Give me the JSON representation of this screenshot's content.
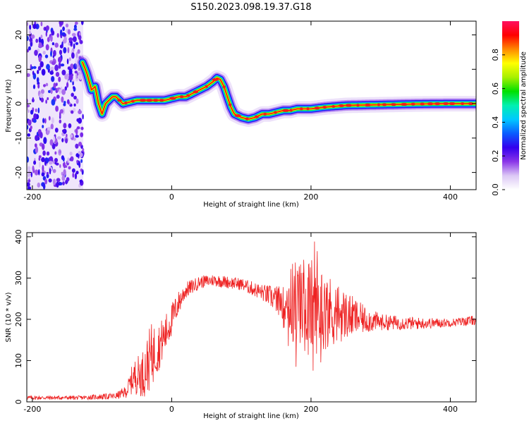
{
  "title": "S150.2023.098.19.37.G18",
  "chart_data": [
    {
      "type": "heatmap",
      "xlabel": "Height of straight line (km)",
      "ylabel": "Frequency (Hz)",
      "xlim": [
        -208,
        437
      ],
      "ylim": [
        -25,
        24
      ],
      "xticks": [
        -200,
        0,
        200,
        400
      ],
      "yticks": [
        -20,
        -10,
        0,
        10,
        20
      ],
      "colorbar": {
        "label": "Normalized spectral amplitude",
        "range": [
          0,
          1
        ],
        "ticks": [
          "0.0",
          "0.2",
          "0.4",
          "0.6",
          "0.8"
        ],
        "colors": [
          "#ffffff",
          "#dcc8f5",
          "#8a35e8",
          "#3300ee",
          "#0a5cff",
          "#00c8ff",
          "#00f0b0",
          "#00e000",
          "#a8f000",
          "#ffff00",
          "#ff8800",
          "#ff0000",
          "#ff1060"
        ]
      },
      "noise_region_x": [
        -208,
        -127
      ],
      "ridge": {
        "x": [
          -128,
          -122,
          -115,
          -110,
          -105,
          -100,
          -95,
          -90,
          -85,
          -80,
          -75,
          -70,
          -60,
          -50,
          -40,
          -30,
          -20,
          -10,
          0,
          10,
          20,
          30,
          40,
          50,
          60,
          65,
          70,
          75,
          80,
          85,
          90,
          95,
          100,
          110,
          120,
          130,
          140,
          150,
          160,
          170,
          180,
          190,
          200,
          220,
          250,
          300,
          350,
          400,
          437
        ],
        "y": [
          12,
          9,
          4,
          5,
          0,
          -3,
          0,
          1,
          2,
          2,
          1,
          0,
          0.5,
          1,
          1,
          1,
          1,
          1,
          1.5,
          2,
          2,
          3,
          4,
          5,
          6.5,
          7.5,
          7,
          5,
          2,
          -1,
          -3,
          -3.5,
          -4,
          -4.5,
          -4,
          -3,
          -3,
          -2.5,
          -2,
          -2,
          -1.5,
          -1.5,
          -1.5,
          -1,
          -0.5,
          -0.3,
          -0.1,
          0,
          0
        ]
      }
    },
    {
      "type": "line",
      "xlabel": "Height of straight line (km)",
      "ylabel": "SNR (10 * v/v)",
      "xlim": [
        -208,
        437
      ],
      "ylim": [
        0,
        410
      ],
      "xticks": [
        -200,
        0,
        200,
        400
      ],
      "yticks": [
        0,
        100,
        200,
        300,
        400
      ],
      "color": "#ee2222",
      "envelope": {
        "x": [
          -208,
          -130,
          -80,
          -65,
          -55,
          -40,
          -30,
          -20,
          -10,
          0,
          10,
          20,
          40,
          60,
          100,
          130,
          160,
          175,
          200,
          225,
          250,
          275,
          300,
          350,
          400,
          437
        ],
        "baseline": [
          10,
          10,
          14,
          25,
          60,
          70,
          110,
          130,
          160,
          200,
          240,
          270,
          290,
          295,
          285,
          265,
          240,
          240,
          230,
          220,
          210,
          200,
          193,
          190,
          192,
          198
        ],
        "amplitude": [
          5,
          5,
          8,
          15,
          40,
          60,
          80,
          60,
          50,
          40,
          30,
          20,
          15,
          15,
          15,
          20,
          40,
          110,
          120,
          90,
          60,
          35,
          20,
          15,
          10,
          12
        ]
      }
    }
  ]
}
